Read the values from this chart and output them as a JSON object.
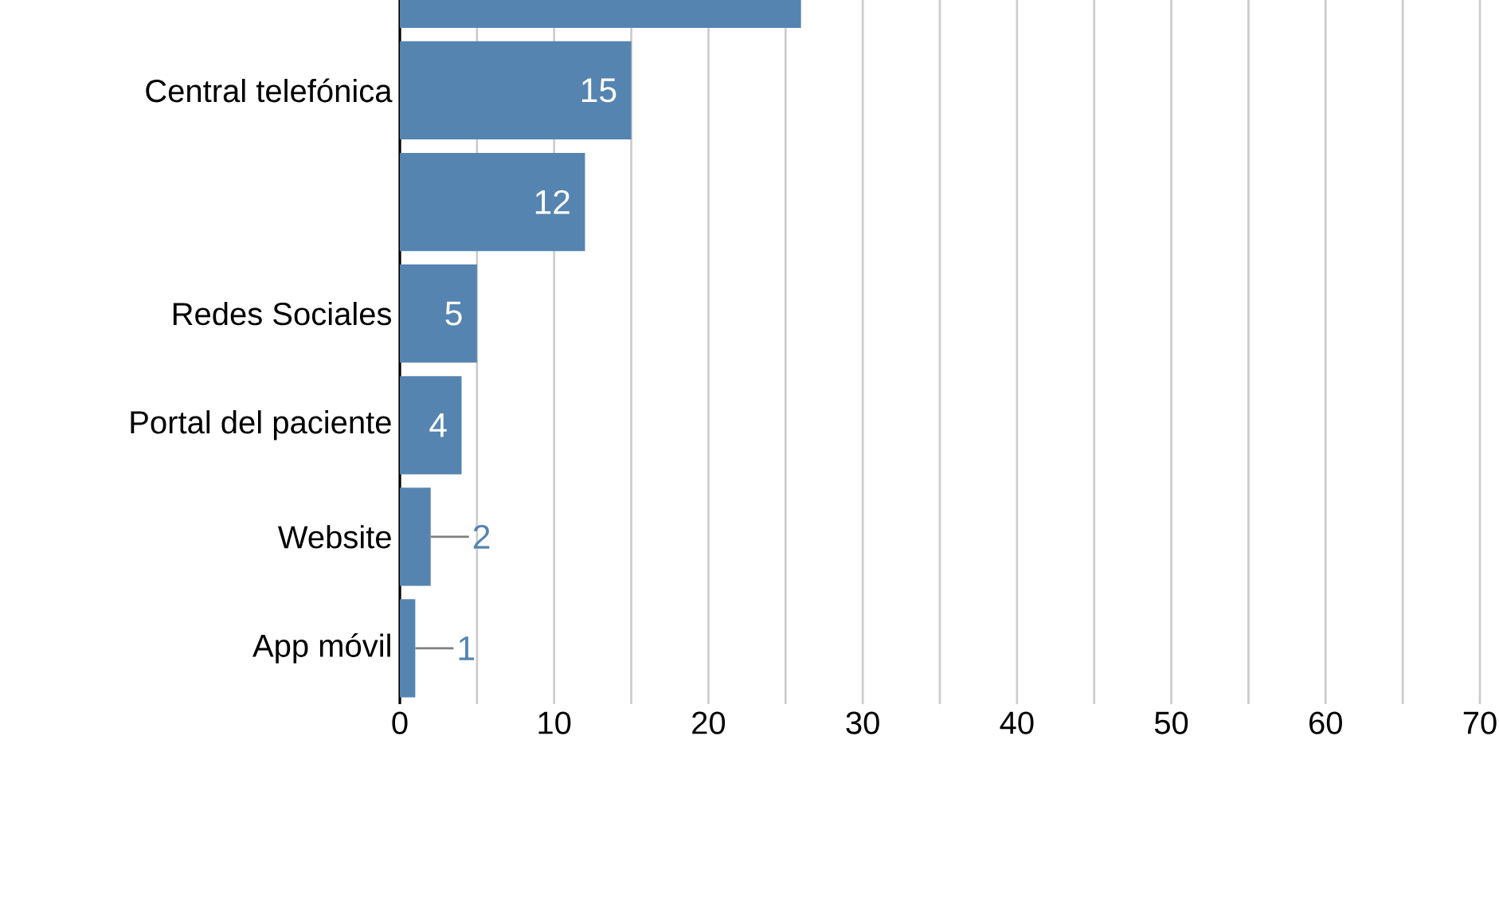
{
  "chart_data": {
    "type": "bar",
    "orientation": "horizontal",
    "categories": [
      null,
      "Central telefónica",
      null,
      "Redes Sociales",
      "Portal del paciente",
      "Website",
      "App móvil"
    ],
    "values": [
      26,
      15,
      12,
      5,
      4,
      2,
      1
    ],
    "value_labels": [
      null,
      "15",
      "12",
      "5",
      "4",
      "2",
      "1"
    ],
    "color": "#5584b0",
    "xlim": [
      0,
      70
    ],
    "xticks": [
      0,
      {
        "value": 5,
        "label": null
      },
      10,
      {
        "value": 15,
        "label": null
      },
      20,
      {
        "value": 25,
        "label": null
      },
      30,
      {
        "value": 35,
        "label": null
      },
      40,
      {
        "value": 45,
        "label": null
      },
      50,
      {
        "value": 55,
        "label": null
      },
      60,
      {
        "value": 65,
        "label": null
      },
      70
    ],
    "grid": "x"
  }
}
